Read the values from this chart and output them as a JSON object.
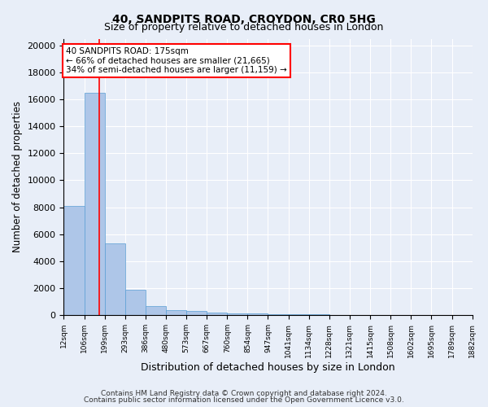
{
  "title": "40, SANDPITS ROAD, CROYDON, CR0 5HG",
  "subtitle": "Size of property relative to detached houses in London",
  "xlabel": "Distribution of detached houses by size in London",
  "ylabel": "Number of detached properties",
  "footnote1": "Contains HM Land Registry data © Crown copyright and database right 2024.",
  "footnote2": "Contains public sector information licensed under the Open Government Licence v3.0.",
  "bin_edges": [
    12,
    106,
    199,
    293,
    386,
    480,
    573,
    667,
    760,
    854,
    947,
    1041,
    1134,
    1228,
    1321,
    1415,
    1508,
    1602,
    1695,
    1789,
    1882
  ],
  "bar_heights": [
    8100,
    16500,
    5300,
    1850,
    700,
    350,
    280,
    200,
    150,
    100,
    70,
    50,
    40,
    30,
    25,
    20,
    15,
    12,
    10,
    8
  ],
  "bar_color": "#aec6e8",
  "bar_edge_color": "#5a9fd4",
  "property_size": 175,
  "annotation_line1": "40 SANDPITS ROAD: 175sqm",
  "annotation_line2": "← 66% of detached houses are smaller (21,665)",
  "annotation_line3": "34% of semi-detached houses are larger (11,159) →",
  "annotation_box_color": "white",
  "annotation_box_edge": "red",
  "vline_color": "red",
  "ylim": [
    0,
    20500
  ],
  "bg_color": "#e8eef8",
  "plot_bg_color": "#e8eef8",
  "grid_color": "white",
  "title_fontsize": 10,
  "subtitle_fontsize": 9,
  "ylabel_fontsize": 8.5,
  "xlabel_fontsize": 9,
  "ytick_fontsize": 8,
  "xtick_fontsize": 6.5,
  "annot_fontsize": 7.5,
  "footnote_fontsize": 6.5
}
